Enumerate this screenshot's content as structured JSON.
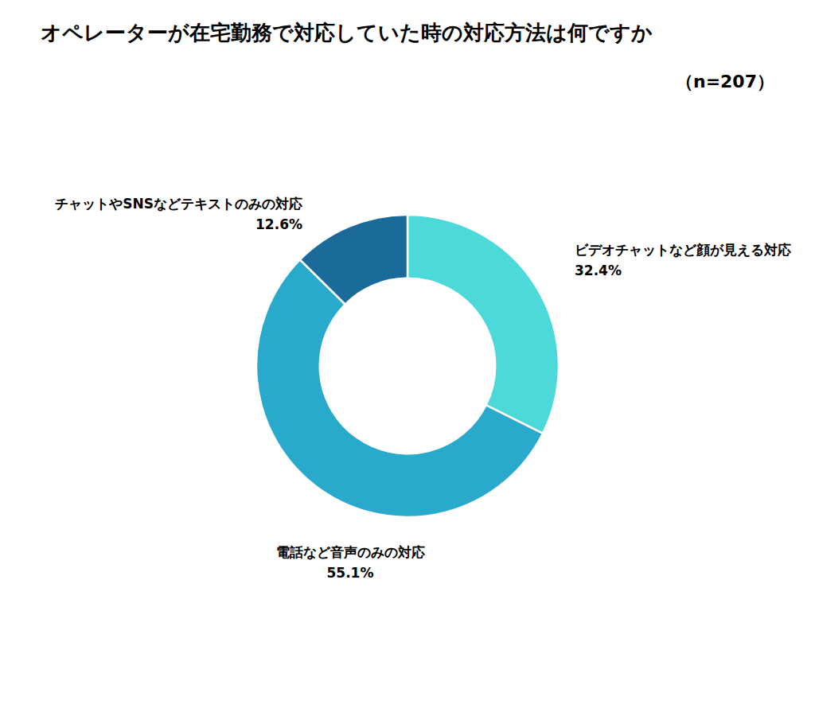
{
  "chart_data": {
    "type": "donut",
    "title": "オペレーターが在宅勤務で対応していた時の対応方法は何ですか",
    "subtitle": "（n=207）",
    "categories": [
      "ビデオチャットなど顔が見える対応",
      "電話など音声のみの対応",
      "チャットやSNSなどテキストのみの対応"
    ],
    "values": [
      32.4,
      55.1,
      12.6
    ],
    "value_labels": [
      "32.4%",
      "55.1%",
      "12.6%"
    ],
    "colors": [
      "#4DD9D9",
      "#29AACC",
      "#1B6B9A"
    ],
    "data_labels": true
  }
}
